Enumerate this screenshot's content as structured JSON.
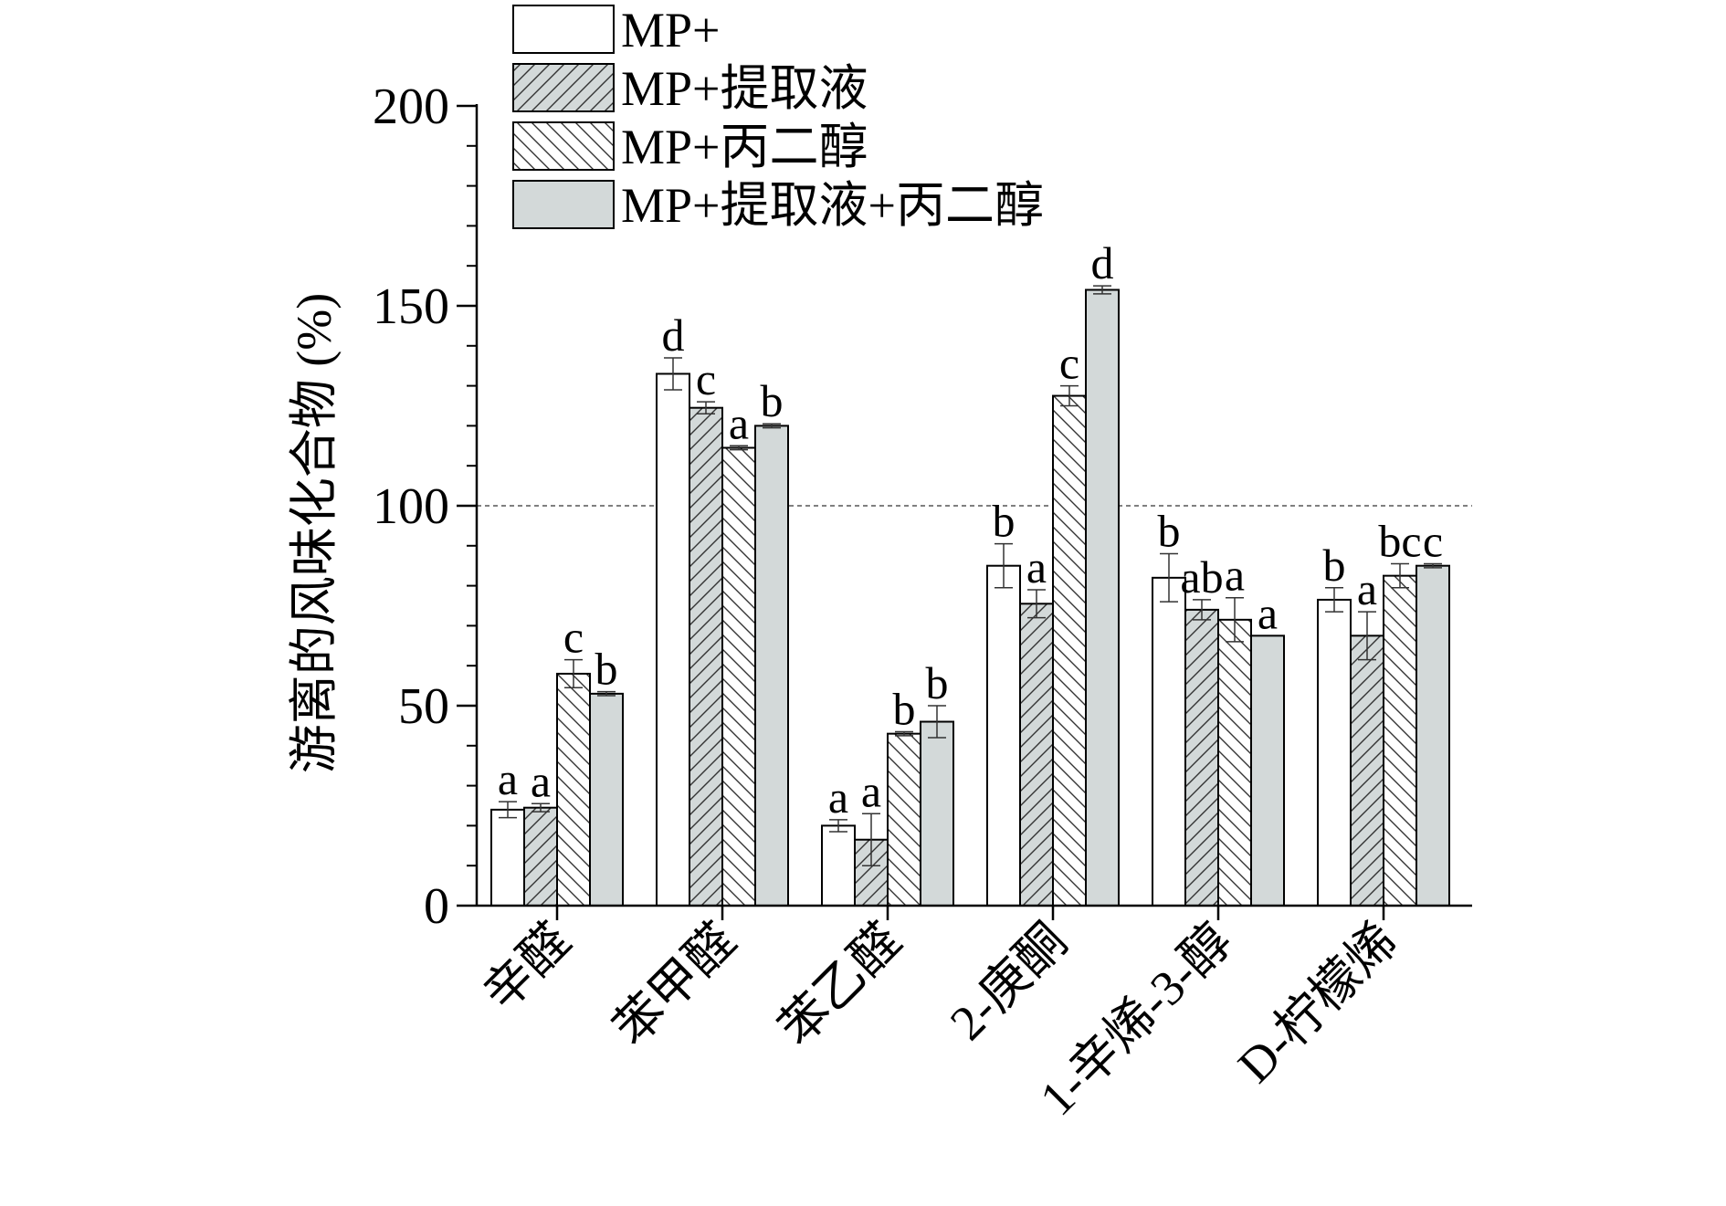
{
  "chart_data": {
    "type": "bar",
    "title": "",
    "xlabel": "",
    "ylabel": "游离的风味化合物 (%)",
    "ylim": [
      0,
      200
    ],
    "yticks": [
      0,
      50,
      100,
      150,
      200
    ],
    "reference_line": 100,
    "grid": false,
    "legend_position": "top",
    "categories": [
      "辛醛",
      "苯甲醛",
      "苯乙醛",
      "2-庚酮",
      "1-辛烯-3-醇",
      "D-柠檬烯"
    ],
    "series": [
      {
        "name": "MP+",
        "pattern": "none",
        "color": "#ffffff",
        "values": [
          24,
          133,
          20,
          85,
          82,
          76.5
        ],
        "errors": [
          2,
          4,
          1.5,
          5.5,
          6,
          3
        ],
        "letters": [
          "a",
          "d",
          "a",
          "b",
          "b",
          "b"
        ]
      },
      {
        "name": "MP+提取液",
        "pattern": "forward-hatch",
        "color": "#d3d9d9",
        "values": [
          24.5,
          124.5,
          16.5,
          75.5,
          74,
          67.5
        ],
        "errors": [
          1,
          1.5,
          6.5,
          3.5,
          2.5,
          6
        ],
        "letters": [
          "a",
          "c",
          "a",
          "a",
          "ab",
          "a"
        ]
      },
      {
        "name": "MP+丙二醇",
        "pattern": "back-hatch",
        "color": "#ffffff",
        "values": [
          58,
          114.5,
          43,
          127.5,
          71.5,
          82.5
        ],
        "errors": [
          3.5,
          0.5,
          0.5,
          2.5,
          5.5,
          3
        ],
        "letters": [
          "c",
          "a",
          "b",
          "c",
          "a",
          "bc"
        ]
      },
      {
        "name": "MP+提取液+丙二醇",
        "pattern": "none",
        "color": "#d3d9d9",
        "values": [
          53,
          120,
          46,
          154,
          67.5,
          85
        ],
        "errors": [
          0.5,
          0.5,
          4,
          1,
          0,
          0.5
        ],
        "letters": [
          "b",
          "b",
          "b",
          "d",
          "a",
          "c"
        ]
      }
    ]
  }
}
